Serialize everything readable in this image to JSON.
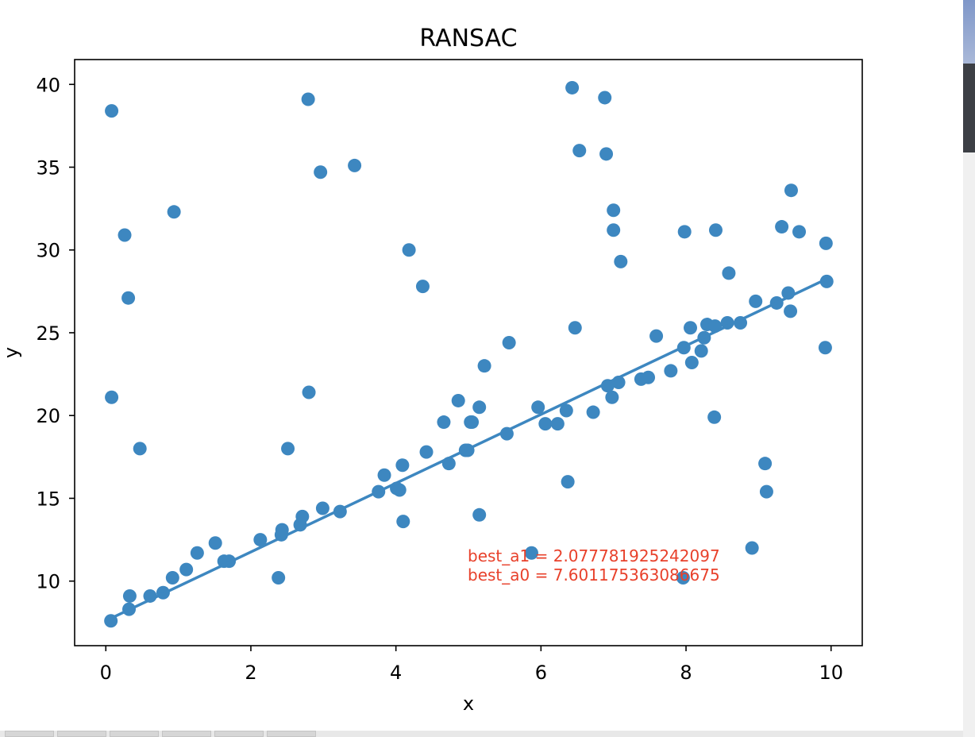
{
  "chart_data": {
    "type": "scatter",
    "title": "RANSAC",
    "xlabel": "x",
    "ylabel": "y",
    "xlim": [
      -0.43,
      10.43
    ],
    "ylim": [
      6.1,
      41.5
    ],
    "xticks": [
      0,
      2,
      4,
      6,
      8,
      10
    ],
    "yticks": [
      10,
      15,
      20,
      25,
      30,
      35,
      40
    ],
    "grid": false,
    "point_color": "#3d87c0",
    "line_color": "#3d87c0",
    "annotation_color": "#e8412b",
    "points": [
      [
        0.07,
        7.6
      ],
      [
        0.32,
        8.3
      ],
      [
        0.33,
        9.1
      ],
      [
        0.61,
        9.1
      ],
      [
        0.79,
        9.3
      ],
      [
        0.92,
        10.2
      ],
      [
        1.11,
        10.7
      ],
      [
        1.26,
        11.7
      ],
      [
        1.51,
        12.3
      ],
      [
        1.63,
        11.2
      ],
      [
        1.7,
        11.2
      ],
      [
        2.13,
        12.5
      ],
      [
        2.38,
        10.2
      ],
      [
        2.42,
        12.8
      ],
      [
        2.43,
        13.1
      ],
      [
        2.68,
        13.4
      ],
      [
        2.71,
        13.9
      ],
      [
        2.99,
        14.4
      ],
      [
        3.23,
        14.2
      ],
      [
        3.76,
        15.4
      ],
      [
        3.84,
        16.4
      ],
      [
        4.01,
        15.6
      ],
      [
        4.05,
        15.5
      ],
      [
        4.09,
        17.0
      ],
      [
        4.42,
        17.8
      ],
      [
        4.1,
        13.6
      ],
      [
        4.73,
        17.1
      ],
      [
        4.96,
        17.9
      ],
      [
        4.99,
        17.9
      ],
      [
        5.03,
        19.6
      ],
      [
        5.05,
        19.6
      ],
      [
        5.15,
        20.5
      ],
      [
        4.66,
        19.6
      ],
      [
        4.86,
        20.9
      ],
      [
        5.53,
        18.9
      ],
      [
        5.96,
        20.5
      ],
      [
        6.06,
        19.5
      ],
      [
        6.23,
        19.5
      ],
      [
        6.35,
        20.3
      ],
      [
        6.72,
        20.2
      ],
      [
        6.92,
        21.8
      ],
      [
        6.98,
        21.1
      ],
      [
        7.07,
        22.0
      ],
      [
        7.38,
        22.2
      ],
      [
        7.48,
        22.3
      ],
      [
        7.79,
        22.7
      ],
      [
        7.97,
        24.1
      ],
      [
        8.06,
        25.3
      ],
      [
        8.08,
        23.2
      ],
      [
        8.21,
        23.9
      ],
      [
        8.25,
        24.7
      ],
      [
        8.29,
        25.5
      ],
      [
        8.4,
        25.4
      ],
      [
        8.57,
        25.6
      ],
      [
        8.75,
        25.6
      ],
      [
        8.96,
        26.9
      ],
      [
        9.25,
        26.8
      ],
      [
        9.41,
        27.4
      ],
      [
        9.44,
        26.3
      ],
      [
        9.94,
        28.1
      ],
      [
        9.92,
        24.1
      ],
      [
        8.39,
        19.9
      ],
      [
        7.59,
        24.8
      ],
      [
        6.47,
        25.3
      ],
      [
        5.56,
        24.4
      ],
      [
        5.22,
        23.0
      ],
      [
        2.8,
        21.4
      ],
      [
        2.51,
        18.0
      ],
      [
        0.47,
        18.0
      ],
      [
        0.08,
        21.1
      ],
      [
        5.15,
        14.0
      ],
      [
        5.87,
        11.7
      ],
      [
        6.37,
        16.0
      ],
      [
        7.96,
        10.2
      ],
      [
        8.91,
        12.0
      ],
      [
        9.09,
        17.1
      ],
      [
        9.11,
        15.4
      ],
      [
        0.08,
        38.4
      ],
      [
        0.26,
        30.9
      ],
      [
        0.31,
        27.1
      ],
      [
        0.94,
        32.3
      ],
      [
        2.79,
        39.1
      ],
      [
        2.96,
        34.7
      ],
      [
        3.43,
        35.1
      ],
      [
        4.18,
        30.0
      ],
      [
        4.37,
        27.8
      ],
      [
        6.43,
        39.8
      ],
      [
        6.53,
        36.0
      ],
      [
        6.88,
        39.2
      ],
      [
        6.9,
        35.8
      ],
      [
        7.0,
        32.4
      ],
      [
        7.0,
        31.2
      ],
      [
        7.1,
        29.3
      ],
      [
        7.98,
        31.1
      ],
      [
        8.41,
        31.2
      ],
      [
        8.59,
        28.6
      ],
      [
        9.32,
        31.4
      ],
      [
        9.45,
        33.6
      ],
      [
        9.56,
        31.1
      ],
      [
        9.93,
        30.4
      ]
    ],
    "fit_line": {
      "x": [
        0.07,
        9.94
      ],
      "y": [
        7.75,
        28.25
      ]
    },
    "annotations": [
      "best_a1 = 2.077781925242097",
      "best_a0 = 7.601175363086675"
    ]
  }
}
